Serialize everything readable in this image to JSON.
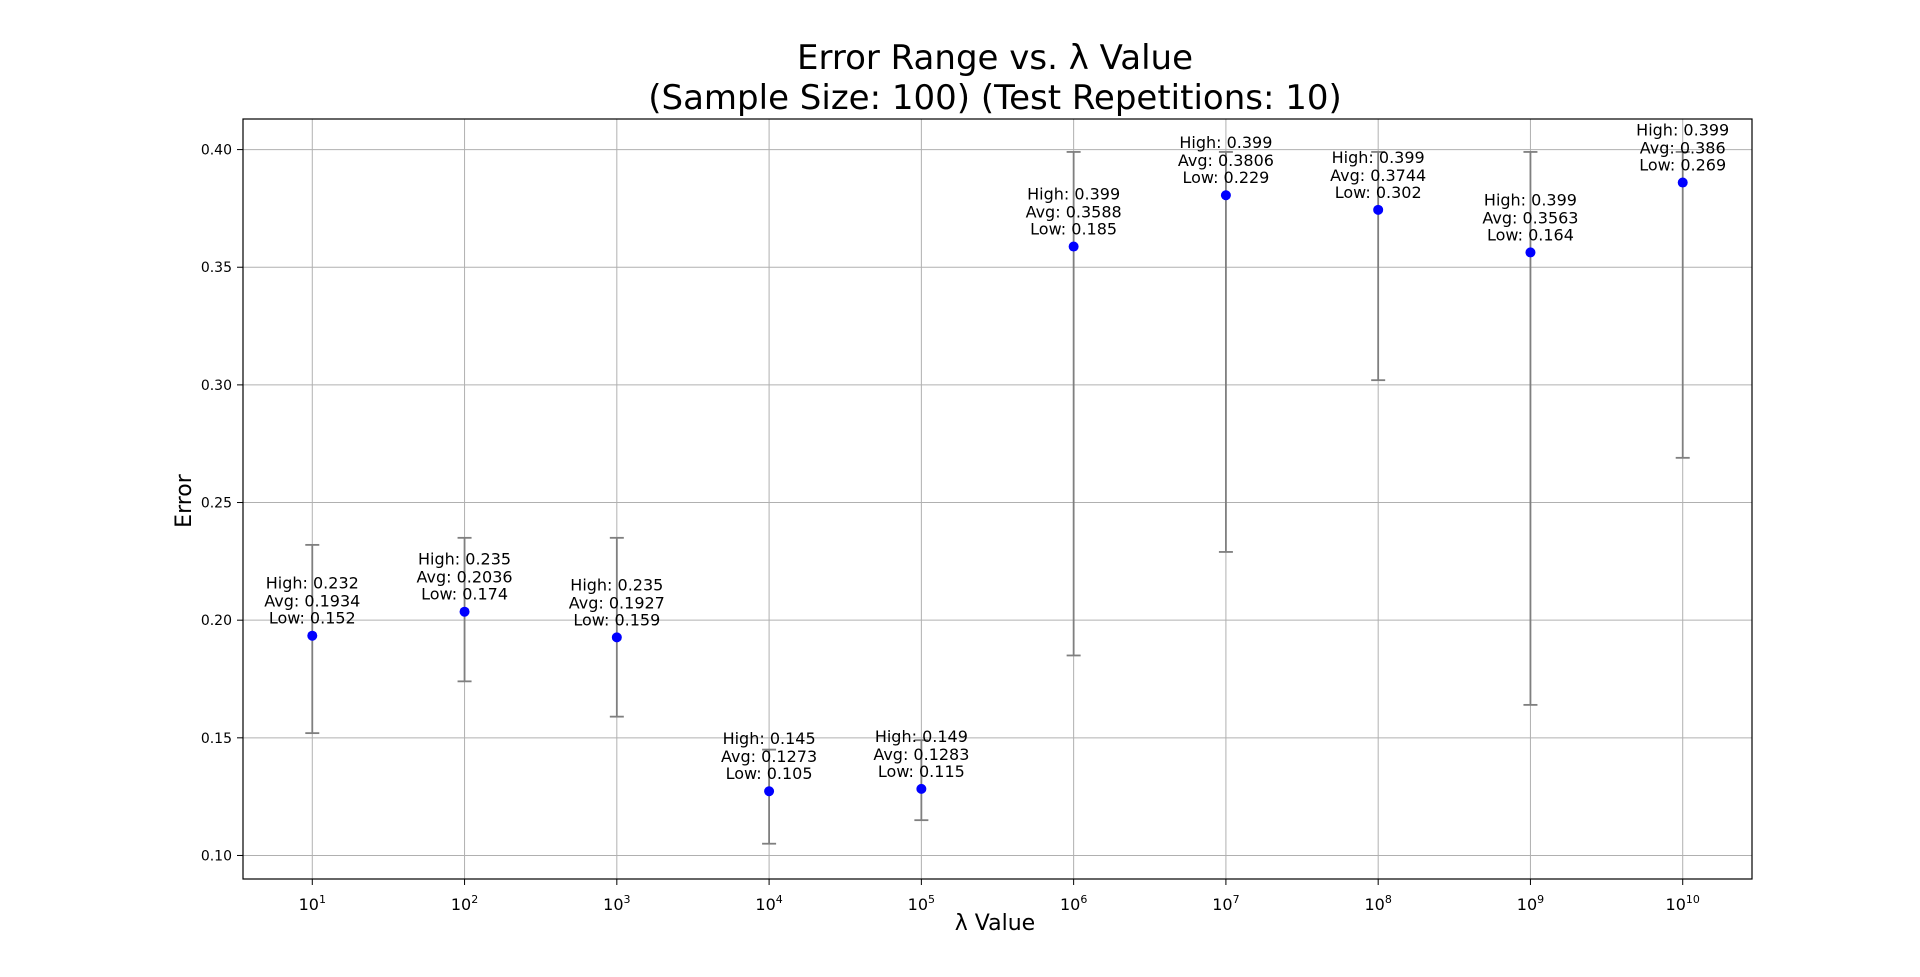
{
  "chart_data": {
    "type": "scatter",
    "title_line1": "Error Range vs. λ Value",
    "title_line2": "(Sample Size: 100) (Test Repetitions: 10)",
    "xlabel": "λ Value",
    "ylabel": "Error",
    "x_scale": "log",
    "x_tick_base": "10",
    "x_tick_exponents": [
      "1",
      "2",
      "3",
      "4",
      "5",
      "6",
      "7",
      "8",
      "9",
      "10"
    ],
    "ylim": [
      0.09,
      0.413
    ],
    "y_ticks": [
      "0.10",
      "0.15",
      "0.20",
      "0.25",
      "0.30",
      "0.35",
      "0.40"
    ],
    "grid": true,
    "marker_color": "#0000ff",
    "errorbar_color": "#7f7f7f",
    "series": [
      {
        "points": [
          {
            "x": 10,
            "avg": 0.1934,
            "high": 0.232,
            "low": 0.152,
            "label_high": "High: 0.232",
            "label_avg": "Avg: 0.1934",
            "label_low": "Low: 0.152"
          },
          {
            "x": 100,
            "avg": 0.2036,
            "high": 0.235,
            "low": 0.174,
            "label_high": "High: 0.235",
            "label_avg": "Avg: 0.2036",
            "label_low": "Low: 0.174"
          },
          {
            "x": 1000,
            "avg": 0.1927,
            "high": 0.235,
            "low": 0.159,
            "label_high": "High: 0.235",
            "label_avg": "Avg: 0.1927",
            "label_low": "Low: 0.159"
          },
          {
            "x": 10000,
            "avg": 0.1273,
            "high": 0.145,
            "low": 0.105,
            "label_high": "High: 0.145",
            "label_avg": "Avg: 0.1273",
            "label_low": "Low: 0.105"
          },
          {
            "x": 100000,
            "avg": 0.1283,
            "high": 0.149,
            "low": 0.115,
            "label_high": "High: 0.149",
            "label_avg": "Avg: 0.1283",
            "label_low": "Low: 0.115"
          },
          {
            "x": 1000000,
            "avg": 0.3588,
            "high": 0.399,
            "low": 0.185,
            "label_high": "High: 0.399",
            "label_avg": "Avg: 0.3588",
            "label_low": "Low: 0.185"
          },
          {
            "x": 10000000,
            "avg": 0.3806,
            "high": 0.399,
            "low": 0.229,
            "label_high": "High: 0.399",
            "label_avg": "Avg: 0.3806",
            "label_low": "Low: 0.229"
          },
          {
            "x": 100000000,
            "avg": 0.3744,
            "high": 0.399,
            "low": 0.302,
            "label_high": "High: 0.399",
            "label_avg": "Avg: 0.3744",
            "label_low": "Low: 0.302"
          },
          {
            "x": 1000000000,
            "avg": 0.3563,
            "high": 0.399,
            "low": 0.164,
            "label_high": "High: 0.399",
            "label_avg": "Avg: 0.3563",
            "label_low": "Low: 0.164"
          },
          {
            "x": 10000000000,
            "avg": 0.386,
            "high": 0.399,
            "low": 0.269,
            "label_high": "High: 0.399",
            "label_avg": "Avg: 0.386",
            "label_low": "Low: 0.269"
          }
        ]
      }
    ]
  }
}
